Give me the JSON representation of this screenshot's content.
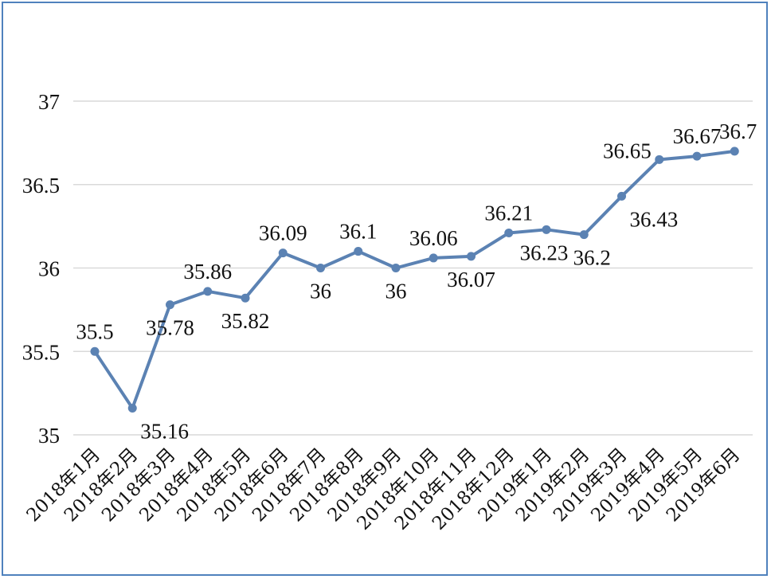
{
  "chart_data": {
    "type": "line",
    "title": "",
    "xlabel": "",
    "ylabel": "",
    "ylim": [
      35,
      37
    ],
    "yticks": [
      "35",
      "35.5",
      "36",
      "36.5",
      "37"
    ],
    "grid": true,
    "legend": "none",
    "colors": {
      "line": "#5b82b3",
      "grid": "#d9d9d9",
      "frame": "#4f81bd"
    },
    "categories": [
      "2018年1月",
      "2018年2月",
      "2018年3月",
      "2018年4月",
      "2018年5月",
      "2018年6月",
      "2018年7月",
      "2018年8月",
      "2018年9月",
      "2018年10月",
      "2018年11月",
      "2018年12月",
      "2019年1月",
      "2019年2月",
      "2019年3月",
      "2019年4月",
      "2019年5月",
      "2019年6月"
    ],
    "series": [
      {
        "values": [
          35.5,
          35.16,
          35.78,
          35.86,
          35.82,
          36.09,
          36,
          36.1,
          36,
          36.06,
          36.07,
          36.21,
          36.23,
          36.2,
          36.43,
          36.65,
          36.67,
          36.7
        ]
      }
    ],
    "data_labels": [
      "35.5",
      "35.16",
      "35.78",
      "35.86",
      "35.82",
      "36.09",
      "36",
      "36.1",
      "36",
      "36.06",
      "36.07",
      "36.21",
      "36.23",
      "36.2",
      "36.43",
      "36.65",
      "36.67",
      "36.7"
    ]
  }
}
